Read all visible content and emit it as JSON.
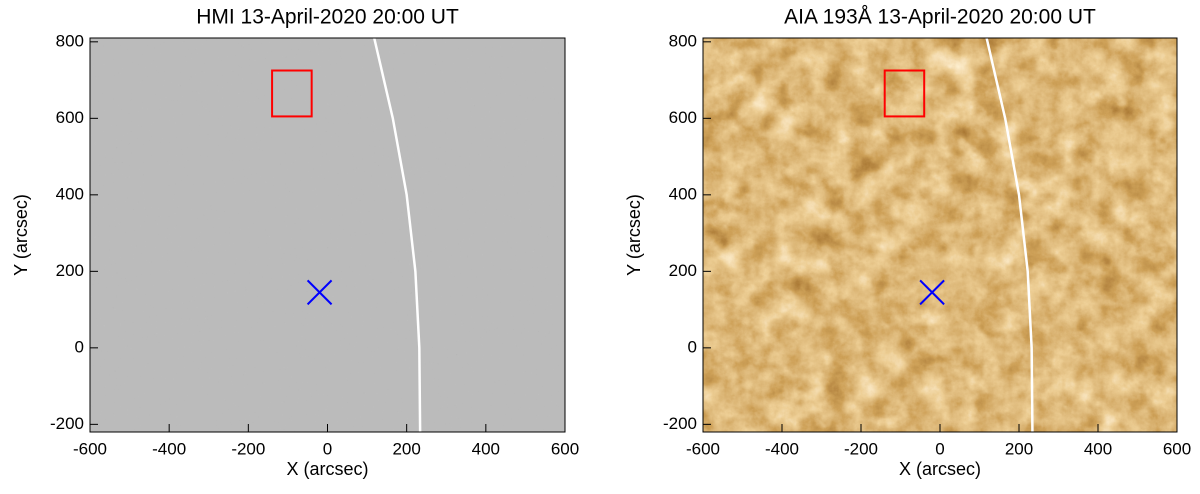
{
  "chart_data": [
    {
      "type": "image",
      "title": "HMI 13-April-2020 20:00 UT",
      "xlabel": "X (arcsec)",
      "ylabel": "Y (arcsec)",
      "xlim": [
        -600,
        600
      ],
      "ylim": [
        -220,
        810
      ],
      "xticks": [
        -600,
        -400,
        -200,
        0,
        200,
        400,
        600
      ],
      "yticks": [
        -200,
        0,
        200,
        400,
        600,
        800
      ],
      "colormap": "gray",
      "box": {
        "x": [
          -140,
          -40
        ],
        "y": [
          605,
          725
        ],
        "color": "#ff0000"
      },
      "marker": {
        "x": -20,
        "y": 145,
        "color": "#0000ff"
      },
      "curve": {
        "x": [
          118,
          165,
          200,
          222,
          232,
          234
        ],
        "y": [
          810,
          600,
          400,
          200,
          0,
          -220
        ],
        "color": "#ffffff"
      }
    },
    {
      "type": "image",
      "title": "AIA 193Å 13-April-2020 20:00 UT",
      "xlabel": "X (arcsec)",
      "ylabel": "Y (arcsec)",
      "xlim": [
        -600,
        600
      ],
      "ylim": [
        -220,
        810
      ],
      "xticks": [
        -600,
        -400,
        -200,
        0,
        200,
        400,
        600
      ],
      "yticks": [
        -200,
        0,
        200,
        400,
        600,
        800
      ],
      "colormap": "sdoaia193",
      "box": {
        "x": [
          -140,
          -40
        ],
        "y": [
          605,
          725
        ],
        "color": "#ff0000"
      },
      "marker": {
        "x": -20,
        "y": 145,
        "color": "#0000ff"
      },
      "curve": {
        "x": [
          118,
          165,
          200,
          222,
          232,
          234
        ],
        "y": [
          810,
          600,
          400,
          200,
          0,
          -220
        ],
        "color": "#ffffff"
      }
    }
  ]
}
